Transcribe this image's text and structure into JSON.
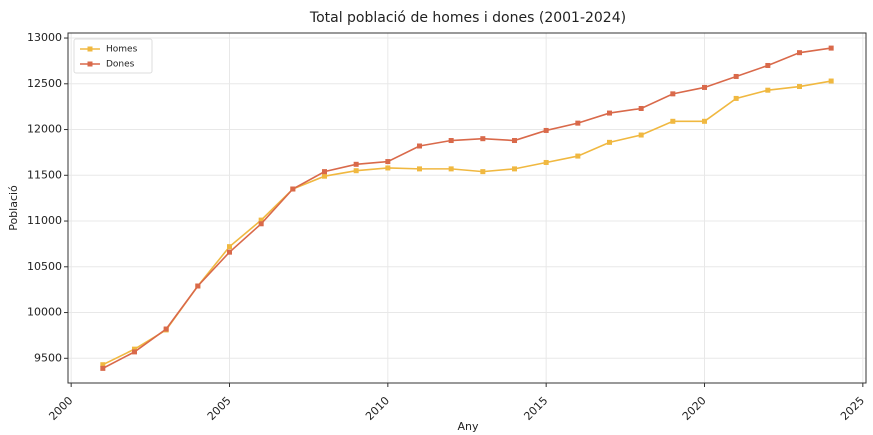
{
  "chart_data": {
    "type": "line",
    "title": "Total població de homes i dones (2001-2024)",
    "x_label": "Any",
    "y_label": "Població",
    "x": [
      2001,
      2002,
      2003,
      2004,
      2005,
      2006,
      2007,
      2008,
      2009,
      2010,
      2011,
      2012,
      2013,
      2014,
      2015,
      2016,
      2017,
      2018,
      2019,
      2020,
      2021,
      2022,
      2023,
      2024
    ],
    "series": [
      {
        "name": "Homes",
        "color": "#f0b840",
        "values": [
          9430,
          9600,
          9810,
          10290,
          10720,
          11010,
          11350,
          11490,
          11550,
          11580,
          11570,
          11570,
          11540,
          11570,
          11640,
          11710,
          11860,
          11940,
          12090,
          12090,
          12340,
          12430,
          12470,
          12530
        ]
      },
      {
        "name": "Dones",
        "color": "#d9694a",
        "values": [
          9390,
          9570,
          9820,
          10290,
          10660,
          10970,
          11350,
          11540,
          11620,
          11650,
          11820,
          11880,
          11900,
          11880,
          11990,
          12070,
          12180,
          12230,
          12390,
          12460,
          12580,
          12700,
          12840,
          12890
        ]
      }
    ],
    "xlim": [
      1999.9,
      2025.1
    ],
    "xticks": [
      2000,
      2005,
      2010,
      2015,
      2020,
      2025
    ],
    "ylim": [
      9230,
      13055
    ],
    "yticks": [
      9500,
      10000,
      10500,
      11000,
      11500,
      12000,
      12500,
      13000
    ],
    "grid": true,
    "legend": "upper left"
  }
}
